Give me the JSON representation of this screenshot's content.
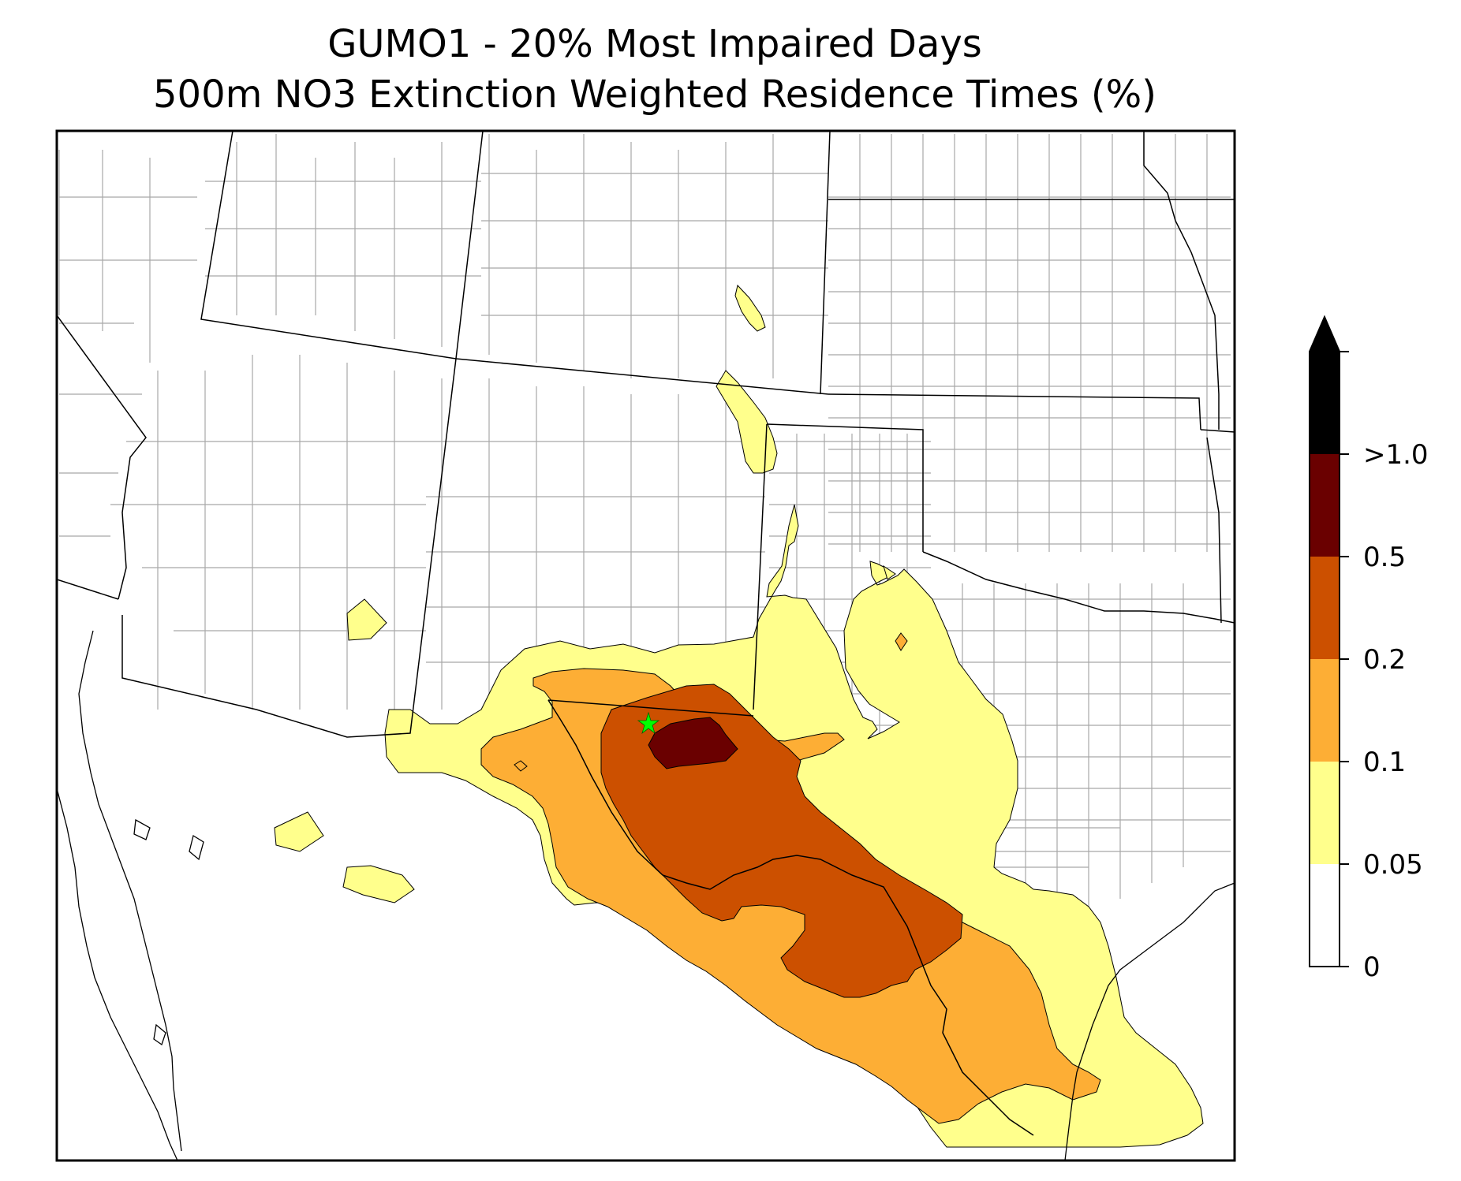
{
  "title": {
    "line1": "GUMO1 - 20% Most Impaired Days",
    "line2": "500m NO3 Extinction Weighted Residence Times (%)"
  },
  "map": {
    "site_marker": "green-star",
    "site_marker_color": "#00ff00"
  },
  "colorbar": {
    "tick_labels": [
      "0",
      "0.05",
      "0.1",
      "0.2",
      "0.5",
      ">1.0"
    ],
    "bins": [
      {
        "range": "0-0.05",
        "color": "#ffffff"
      },
      {
        "range": "0.05-0.1",
        "color": "#ffff8c"
      },
      {
        "range": "0.1-0.2",
        "color": "#fdae35"
      },
      {
        "range": "0.2-0.5",
        "color": "#cc5000"
      },
      {
        "range": "0.5-1.0",
        "color": "#6a0000"
      },
      {
        "range": ">1.0",
        "color": "#000000"
      }
    ],
    "extend": "max"
  },
  "colors": {
    "state_border": "#000000",
    "county_border": "#a0a0a0",
    "coastline": "#000000"
  }
}
